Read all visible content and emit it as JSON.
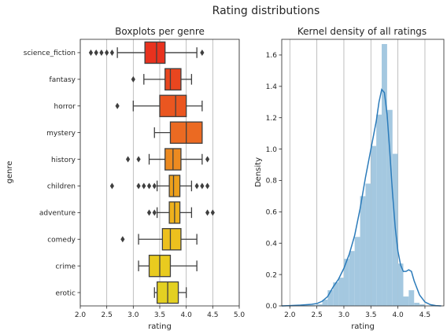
{
  "figure": {
    "title": "Rating distributions"
  },
  "chart_data": [
    {
      "type": "boxplot",
      "title": "Boxplots per genre",
      "xlabel": "rating",
      "ylabel": "genre",
      "xlim": [
        2.0,
        5.0
      ],
      "xticks": [
        "2.0",
        "2.5",
        "3.0",
        "3.5",
        "4.0",
        "4.5",
        "5.0"
      ],
      "xtick_values": [
        2.0,
        2.5,
        3.0,
        3.5,
        4.0,
        4.5,
        5.0
      ],
      "grid": "vertical",
      "orientation": "horizontal",
      "categories": [
        {
          "name": "science_fiction",
          "color": "#e8321e",
          "whislo": 2.7,
          "q1": 3.22,
          "median": 3.44,
          "q3": 3.6,
          "whishi": 4.2,
          "fliers": [
            2.2,
            2.3,
            2.4,
            2.5,
            2.6,
            4.3
          ]
        },
        {
          "name": "fantasy",
          "color": "#e9461f",
          "whislo": 3.2,
          "q1": 3.6,
          "median": 3.7,
          "q3": 3.9,
          "whishi": 4.1,
          "fliers": [
            3.0
          ]
        },
        {
          "name": "horror",
          "color": "#ea5620",
          "whislo": 3.0,
          "q1": 3.5,
          "median": 3.8,
          "q3": 4.0,
          "whishi": 4.3,
          "fliers": [
            2.7
          ]
        },
        {
          "name": "mystery",
          "color": "#eb6a22",
          "whislo": 3.4,
          "q1": 3.7,
          "median": 4.0,
          "q3": 4.3,
          "whishi": 4.3,
          "fliers": []
        },
        {
          "name": "history",
          "color": "#ec8a20",
          "whislo": 3.3,
          "q1": 3.6,
          "median": 3.75,
          "q3": 3.9,
          "whishi": 4.3,
          "fliers": [
            2.9,
            3.1,
            4.4
          ]
        },
        {
          "name": "children",
          "color": "#eda01c",
          "whislo": 3.45,
          "q1": 3.68,
          "median": 3.76,
          "q3": 3.88,
          "whishi": 4.1,
          "fliers": [
            2.6,
            3.1,
            3.2,
            3.3,
            3.4,
            4.2,
            4.3,
            4.4
          ]
        },
        {
          "name": "adventure",
          "color": "#eeb11c",
          "whislo": 3.45,
          "q1": 3.68,
          "median": 3.78,
          "q3": 3.88,
          "whishi": 4.1,
          "fliers": [
            3.3,
            3.4,
            4.4,
            4.5
          ]
        },
        {
          "name": "comedy",
          "color": "#edc01e",
          "whislo": 3.1,
          "q1": 3.55,
          "median": 3.7,
          "q3": 3.9,
          "whishi": 4.2,
          "fliers": [
            2.8
          ]
        },
        {
          "name": "crime",
          "color": "#e9cb1f",
          "whislo": 3.1,
          "q1": 3.3,
          "median": 3.5,
          "q3": 3.7,
          "whishi": 4.2,
          "fliers": []
        },
        {
          "name": "erotic",
          "color": "#e3d022",
          "whislo": 3.4,
          "q1": 3.45,
          "median": 3.65,
          "q3": 3.85,
          "whishi": 4.0,
          "fliers": []
        }
      ]
    },
    {
      "type": "histogram",
      "title": "Kernel density of all ratings",
      "xlabel": "rating",
      "ylabel": "Density",
      "xlim": [
        1.85,
        4.85
      ],
      "ylim": [
        0,
        1.7
      ],
      "xticks": [
        "2.0",
        "2.5",
        "3.0",
        "3.5",
        "4.0",
        "4.5"
      ],
      "xtick_values": [
        2.0,
        2.5,
        3.0,
        3.5,
        4.0,
        4.5
      ],
      "yticks": [
        "0.0",
        "0.2",
        "0.4",
        "0.6",
        "0.8",
        "1.0",
        "1.2",
        "1.4",
        "1.6"
      ],
      "ytick_values": [
        0.0,
        0.2,
        0.4,
        0.6,
        0.8,
        1.0,
        1.2,
        1.4,
        1.6
      ],
      "grid": "vertical",
      "bar_color": "#a4c8e0",
      "line_color": "#2b7bba",
      "bins": [
        {
          "x0": 2.2,
          "x1": 2.3,
          "value": 0.005
        },
        {
          "x0": 2.3,
          "x1": 2.4,
          "value": 0.005
        },
        {
          "x0": 2.4,
          "x1": 2.5,
          "value": 0.005
        },
        {
          "x0": 2.5,
          "x1": 2.6,
          "value": 0.01
        },
        {
          "x0": 2.6,
          "x1": 2.7,
          "value": 0.04
        },
        {
          "x0": 2.7,
          "x1": 2.8,
          "value": 0.1
        },
        {
          "x0": 2.8,
          "x1": 2.9,
          "value": 0.15
        },
        {
          "x0": 2.9,
          "x1": 3.0,
          "value": 0.18
        },
        {
          "x0": 3.0,
          "x1": 3.1,
          "value": 0.3
        },
        {
          "x0": 3.1,
          "x1": 3.2,
          "value": 0.35
        },
        {
          "x0": 3.2,
          "x1": 3.3,
          "value": 0.44
        },
        {
          "x0": 3.3,
          "x1": 3.4,
          "value": 0.7
        },
        {
          "x0": 3.4,
          "x1": 3.5,
          "value": 0.78
        },
        {
          "x0": 3.5,
          "x1": 3.6,
          "value": 1.02
        },
        {
          "x0": 3.6,
          "x1": 3.7,
          "value": 1.22
        },
        {
          "x0": 3.7,
          "x1": 3.8,
          "value": 1.67
        },
        {
          "x0": 3.8,
          "x1": 3.9,
          "value": 1.25
        },
        {
          "x0": 3.9,
          "x1": 4.0,
          "value": 0.97
        },
        {
          "x0": 4.0,
          "x1": 4.1,
          "value": 0.27
        },
        {
          "x0": 4.1,
          "x1": 4.2,
          "value": 0.06
        },
        {
          "x0": 4.2,
          "x1": 4.3,
          "value": 0.1
        },
        {
          "x0": 4.3,
          "x1": 4.4,
          "value": 0.02
        },
        {
          "x0": 4.4,
          "x1": 4.5,
          "value": 0.01
        }
      ],
      "kde": [
        [
          1.85,
          0.0
        ],
        [
          2.0,
          0.002
        ],
        [
          2.2,
          0.005
        ],
        [
          2.4,
          0.01
        ],
        [
          2.5,
          0.015
        ],
        [
          2.6,
          0.03
        ],
        [
          2.7,
          0.06
        ],
        [
          2.8,
          0.12
        ],
        [
          2.9,
          0.17
        ],
        [
          3.0,
          0.24
        ],
        [
          3.1,
          0.33
        ],
        [
          3.2,
          0.45
        ],
        [
          3.3,
          0.62
        ],
        [
          3.4,
          0.82
        ],
        [
          3.5,
          1.0
        ],
        [
          3.6,
          1.18
        ],
        [
          3.65,
          1.3
        ],
        [
          3.7,
          1.38
        ],
        [
          3.75,
          1.36
        ],
        [
          3.8,
          1.22
        ],
        [
          3.85,
          0.98
        ],
        [
          3.9,
          0.72
        ],
        [
          3.95,
          0.5
        ],
        [
          4.0,
          0.35
        ],
        [
          4.05,
          0.26
        ],
        [
          4.1,
          0.22
        ],
        [
          4.15,
          0.22
        ],
        [
          4.2,
          0.23
        ],
        [
          4.25,
          0.22
        ],
        [
          4.3,
          0.16
        ],
        [
          4.4,
          0.07
        ],
        [
          4.5,
          0.025
        ],
        [
          4.6,
          0.008
        ],
        [
          4.7,
          0.002
        ],
        [
          4.8,
          0.0
        ]
      ]
    }
  ]
}
